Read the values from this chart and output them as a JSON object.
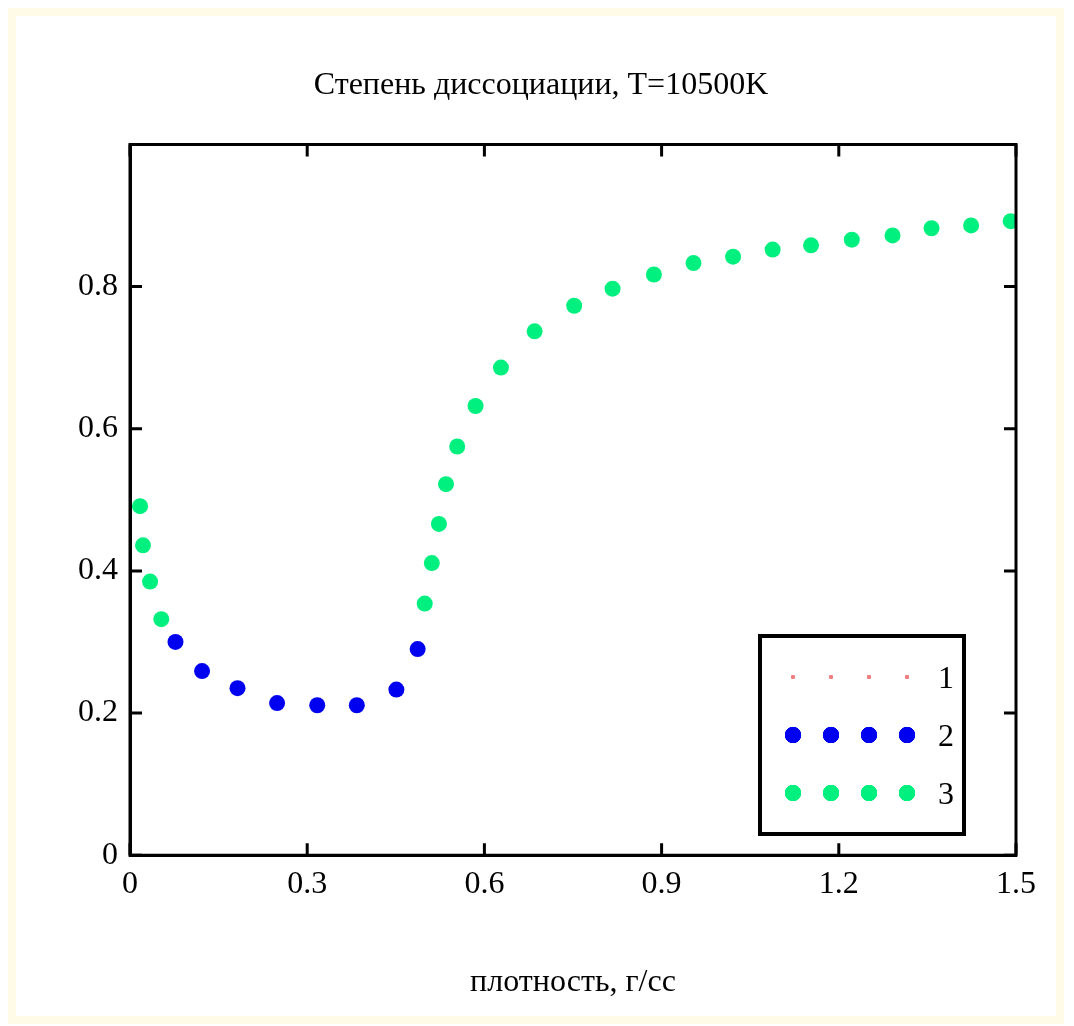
{
  "chart_data": {
    "type": "scatter",
    "title": "Степень диссоциации, T=10500K",
    "xlabel": "плотность, г/cc",
    "series": [
      {
        "name": "1",
        "color": "#f08080",
        "marker": "square"
      },
      {
        "name": "2",
        "color": "#0000f0",
        "x": [
          0.077,
          0.122,
          0.182,
          0.249,
          0.317,
          0.384,
          0.451,
          0.487
        ],
        "values": [
          0.3,
          0.259,
          0.235,
          0.214,
          0.211,
          0.211,
          0.233,
          0.29
        ]
      },
      {
        "name": "3",
        "color": "#00f080",
        "x": [
          0.017,
          0.022,
          0.034,
          0.053,
          0.499,
          0.511,
          0.523,
          0.535,
          0.554,
          0.585,
          0.628,
          0.685,
          0.752,
          0.817,
          0.887,
          0.954,
          1.021,
          1.088,
          1.153,
          1.222,
          1.291,
          1.357,
          1.424,
          1.491
        ],
        "values": [
          0.491,
          0.436,
          0.385,
          0.332,
          0.354,
          0.411,
          0.466,
          0.522,
          0.575,
          0.632,
          0.686,
          0.737,
          0.773,
          0.797,
          0.817,
          0.833,
          0.842,
          0.852,
          0.858,
          0.866,
          0.872,
          0.882,
          0.886,
          0.892
        ]
      }
    ],
    "marker": "circle",
    "xlim": [
      0,
      1.5
    ],
    "xticks": [
      0,
      0.3,
      0.6,
      0.9,
      1.2,
      1.5
    ],
    "ylim": [
      0,
      1
    ],
    "yticks": [
      0,
      0.2,
      0.4,
      0.6,
      0.8
    ],
    "grid": false,
    "legend": "bottom right"
  }
}
